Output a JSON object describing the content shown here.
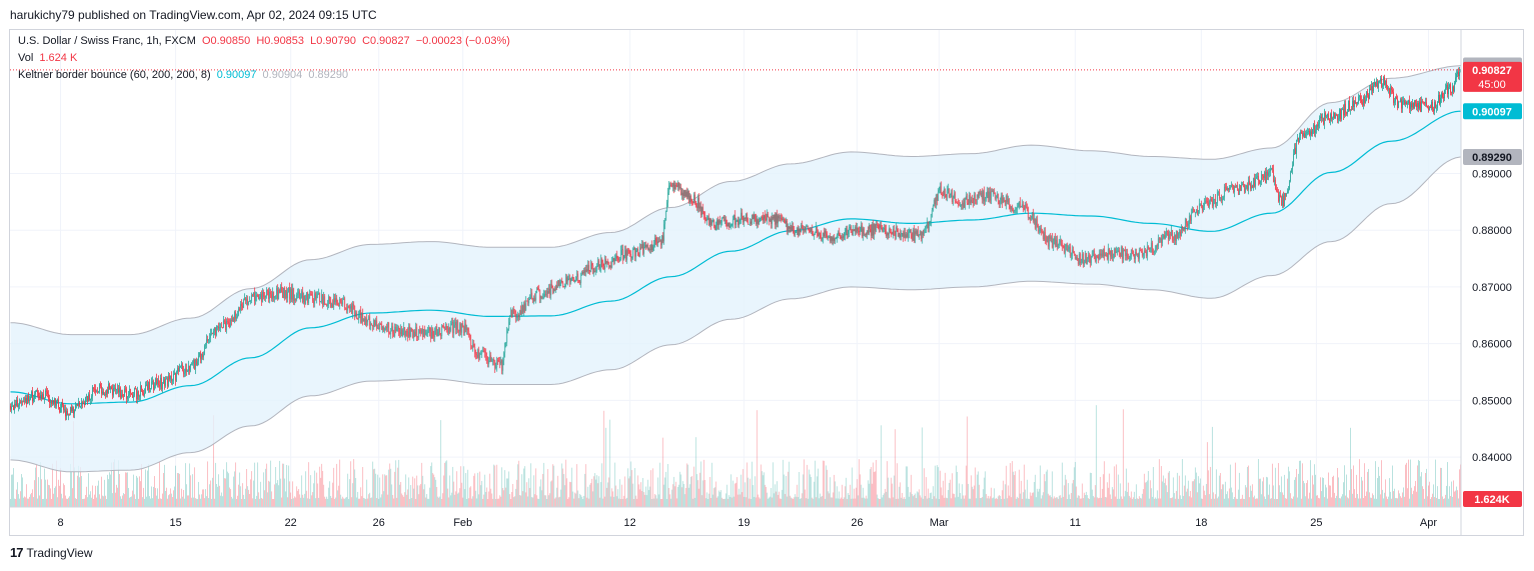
{
  "header": {
    "publisher_line": "harukichy79 published on TradingView.com, Apr 02, 2024 09:15 UTC"
  },
  "legend": {
    "symbol": "U.S. Dollar / Swiss Franc, 1h, FXCM",
    "open": "O0.90850",
    "high": "H0.90853",
    "low": "L0.90790",
    "close": "C0.90827",
    "change": "−0.00023 (−0.03%)",
    "vol_label": "Vol",
    "vol_value": "1.624 K",
    "indicator_label": "Keltner border bounce (60, 200, 200, 8)",
    "indicator_mid": "0.90097",
    "indicator_upper": "0.90904",
    "indicator_lower": "0.89290"
  },
  "price_tags": {
    "upper": "0.90904",
    "last": "0.90827",
    "countdown": "45:00",
    "mid": "0.90097",
    "lower": "0.89290",
    "volume": "1.624K"
  },
  "footer": {
    "logo_glyph": "17",
    "brand": "TradingView"
  },
  "colors": {
    "up": "#26a69a",
    "down": "#f23645",
    "mid_line": "#00bcd4",
    "band_fill": "#e3f2fd",
    "band_edge": "#b2b5be"
  },
  "chart_data": {
    "type": "candlestick",
    "symbol": "U.S. Dollar / Swiss Franc, 1h, FXCM",
    "y_ticks": [
      0.84,
      0.85,
      0.86,
      0.87,
      0.88,
      0.89
    ],
    "y_tick_labels": [
      "0.84000",
      "0.85000",
      "0.86000",
      "0.87000",
      "0.88000",
      "0.89000"
    ],
    "ylim": [
      0.8312,
      0.9153
    ],
    "x_tick_labels": [
      "8",
      "15",
      "22",
      "26",
      "Feb",
      "12",
      "19",
      "26",
      "Mar",
      "11",
      "18",
      "25",
      "Apr"
    ],
    "x_tick_index": [
      50,
      165,
      280,
      368,
      452,
      619,
      733,
      846,
      928,
      1064,
      1190,
      1305,
      1417
    ],
    "price_path_index": [
      0,
      30,
      60,
      90,
      120,
      150,
      180,
      210,
      240,
      270,
      300,
      330,
      360,
      390,
      420,
      450,
      470,
      490,
      500,
      530,
      560,
      590,
      620,
      650,
      660,
      680,
      700,
      730,
      760,
      790,
      820,
      850,
      880,
      910,
      930,
      950,
      980,
      1010,
      1040,
      1070,
      1100,
      1130,
      1160,
      1190,
      1220,
      1250,
      1260,
      1270,
      1290,
      1320,
      1350,
      1370,
      1390,
      1420,
      1440,
      1450
    ],
    "price_path": [
      0.849,
      0.851,
      0.848,
      0.852,
      0.851,
      0.853,
      0.856,
      0.863,
      0.868,
      0.869,
      0.868,
      0.867,
      0.864,
      0.862,
      0.862,
      0.863,
      0.858,
      0.856,
      0.865,
      0.869,
      0.871,
      0.874,
      0.876,
      0.878,
      0.888,
      0.886,
      0.881,
      0.882,
      0.882,
      0.88,
      0.879,
      0.88,
      0.88,
      0.879,
      0.887,
      0.885,
      0.886,
      0.884,
      0.878,
      0.875,
      0.876,
      0.876,
      0.879,
      0.884,
      0.887,
      0.889,
      0.89,
      0.885,
      0.897,
      0.9,
      0.903,
      0.906,
      0.902,
      0.902,
      0.905,
      0.9083
    ],
    "band_index": [
      0,
      60,
      120,
      180,
      240,
      300,
      360,
      420,
      480,
      540,
      600,
      660,
      720,
      780,
      840,
      900,
      960,
      1020,
      1080,
      1140,
      1200,
      1260,
      1320,
      1380,
      1450
    ],
    "mid_band": [
      0.8515,
      0.8494,
      0.8497,
      0.8526,
      0.8575,
      0.8628,
      0.8654,
      0.8659,
      0.8648,
      0.8649,
      0.8675,
      0.8718,
      0.8763,
      0.8799,
      0.882,
      0.8812,
      0.8818,
      0.883,
      0.8825,
      0.8812,
      0.8798,
      0.883,
      0.8902,
      0.8957,
      0.901
    ],
    "upper_band": [
      0.8637,
      0.8616,
      0.8616,
      0.8645,
      0.8697,
      0.8748,
      0.8775,
      0.878,
      0.877,
      0.877,
      0.8796,
      0.884,
      0.8886,
      0.8917,
      0.8938,
      0.893,
      0.8935,
      0.895,
      0.894,
      0.893,
      0.8925,
      0.8945,
      0.9025,
      0.9068,
      0.909
    ],
    "lower_band": [
      0.8395,
      0.8374,
      0.8377,
      0.8408,
      0.8455,
      0.8508,
      0.8534,
      0.8538,
      0.8528,
      0.8528,
      0.8554,
      0.8598,
      0.8643,
      0.8679,
      0.87,
      0.8695,
      0.87,
      0.871,
      0.8705,
      0.8695,
      0.868,
      0.872,
      0.878,
      0.8847,
      0.8929
    ],
    "candle_count": 1450,
    "last_close": 0.90827,
    "upper_band_last": 0.90904,
    "mid_band_last": 0.90097,
    "lower_band_last": 0.8929
  }
}
